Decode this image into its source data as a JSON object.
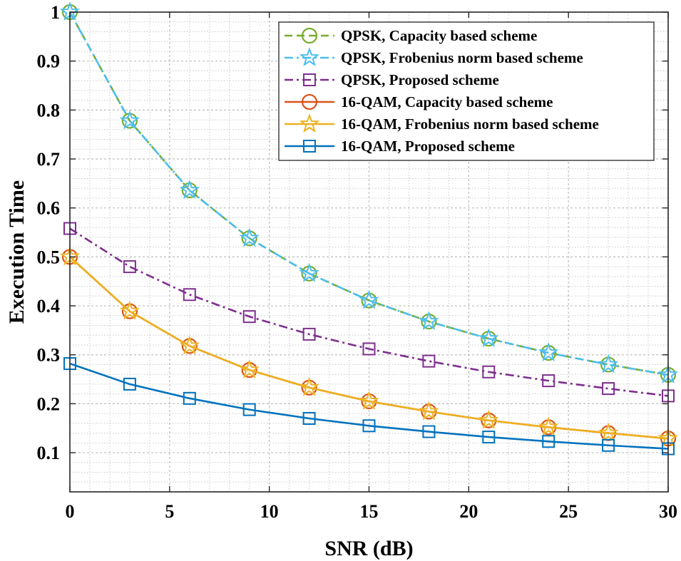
{
  "chart_data": {
    "type": "line",
    "title": "",
    "xlabel": "SNR (dB)",
    "ylabel": "Execution Time",
    "xlim": [
      0,
      30
    ],
    "ylim": [
      0.02,
      1.0
    ],
    "xticks": [
      0,
      5,
      10,
      15,
      20,
      25,
      30
    ],
    "yticks": [
      0.1,
      0.2,
      0.3,
      0.4,
      0.5,
      0.6,
      0.7,
      0.8,
      0.9,
      1.0
    ],
    "ytick_labels": [
      "0.1",
      "0.2",
      "0.3",
      "0.4",
      "0.5",
      "0.6",
      "0.7",
      "0.8",
      "0.9",
      "1"
    ],
    "grid": true,
    "minor_grid": true,
    "legend_position": "top-right",
    "x": [
      0,
      3,
      6,
      9,
      12,
      15,
      18,
      21,
      24,
      27,
      30
    ],
    "series": [
      {
        "name": "QPSK, Capacity based scheme",
        "values": [
          1.0,
          0.778,
          0.636,
          0.538,
          0.466,
          0.411,
          0.368,
          0.333,
          0.304,
          0.28,
          0.259
        ],
        "color": "#77ac30",
        "dash": "dashed",
        "marker": "circle"
      },
      {
        "name": "QPSK, Frobenius norm based scheme",
        "values": [
          1.0,
          0.778,
          0.636,
          0.538,
          0.466,
          0.411,
          0.368,
          0.333,
          0.304,
          0.28,
          0.259
        ],
        "color": "#4dbeee",
        "dash": "dashdot",
        "marker": "star"
      },
      {
        "name": "QPSK, Proposed scheme",
        "values": [
          0.558,
          0.48,
          0.423,
          0.378,
          0.342,
          0.312,
          0.287,
          0.265,
          0.247,
          0.231,
          0.216
        ],
        "color": "#7e2f8e",
        "dash": "dashdot",
        "marker": "square"
      },
      {
        "name": "16-QAM, Capacity based scheme",
        "values": [
          0.5,
          0.389,
          0.318,
          0.269,
          0.233,
          0.205,
          0.184,
          0.166,
          0.152,
          0.14,
          0.129
        ],
        "color": "#d95319",
        "dash": "solid",
        "marker": "circle"
      },
      {
        "name": "16-QAM, Frobenius norm based scheme",
        "values": [
          0.5,
          0.389,
          0.318,
          0.269,
          0.233,
          0.205,
          0.184,
          0.166,
          0.152,
          0.14,
          0.129
        ],
        "color": "#edb120",
        "dash": "solid",
        "marker": "star"
      },
      {
        "name": "16-QAM, Proposed scheme",
        "values": [
          0.282,
          0.24,
          0.211,
          0.188,
          0.17,
          0.155,
          0.143,
          0.132,
          0.123,
          0.115,
          0.108
        ],
        "color": "#0072bd",
        "dash": "solid",
        "marker": "square"
      }
    ]
  }
}
